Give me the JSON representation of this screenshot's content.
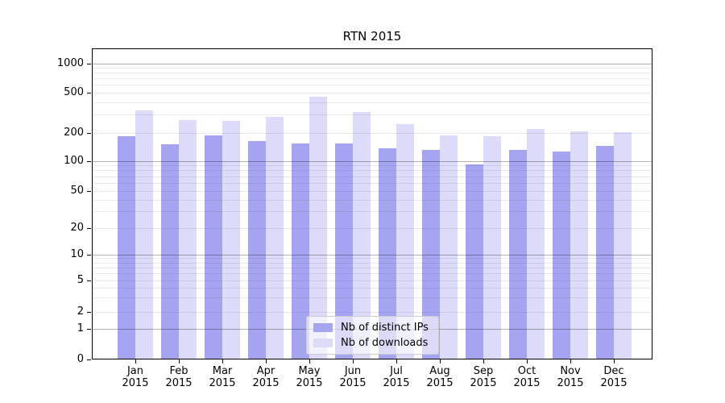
{
  "title": "RTN 2015",
  "chart_data": {
    "type": "bar",
    "title": "RTN 2015",
    "categories": [
      "Jan 2015",
      "Feb 2015",
      "Mar 2015",
      "Apr 2015",
      "May 2015",
      "Jun 2015",
      "Jul 2015",
      "Aug 2015",
      "Sep 2015",
      "Oct 2015",
      "Nov 2015",
      "Dec 2015"
    ],
    "months": [
      "Jan",
      "Feb",
      "Mar",
      "Apr",
      "May",
      "Jun",
      "Jul",
      "Aug",
      "Sep",
      "Oct",
      "Nov",
      "Dec"
    ],
    "year": "2015",
    "series": [
      {
        "name": "Nb of distinct IPs",
        "color": "#a5a4f1",
        "values": [
          185,
          152,
          190,
          165,
          155,
          155,
          138,
          132,
          93,
          131,
          128,
          147
        ]
      },
      {
        "name": "Nb of downloads",
        "color": "#dcdbf9",
        "values": [
          335,
          270,
          265,
          290,
          460,
          325,
          245,
          190,
          185,
          220,
          208,
          202
        ]
      }
    ],
    "y_scale": "symlog",
    "y_ticks": [
      0,
      1,
      2,
      5,
      10,
      20,
      50,
      100,
      200,
      500,
      1000
    ],
    "y_minor_ticks": [
      3,
      4,
      6,
      7,
      8,
      9,
      30,
      40,
      60,
      70,
      80,
      90,
      300,
      400,
      600,
      700,
      800,
      900
    ],
    "ylim": [
      0,
      1400
    ],
    "xlabel": "",
    "ylabel": "",
    "grid": true,
    "legend_position": "lower center"
  },
  "colors": {
    "bar_distinct_ips": "#a5a4f1",
    "bar_downloads": "#dcdbf9",
    "grid_major": "rgba(0,0,0,0.30)",
    "grid_minor": "rgba(0,0,0,0.08)",
    "spine": "#000000",
    "legend_border": "#cccccc"
  }
}
